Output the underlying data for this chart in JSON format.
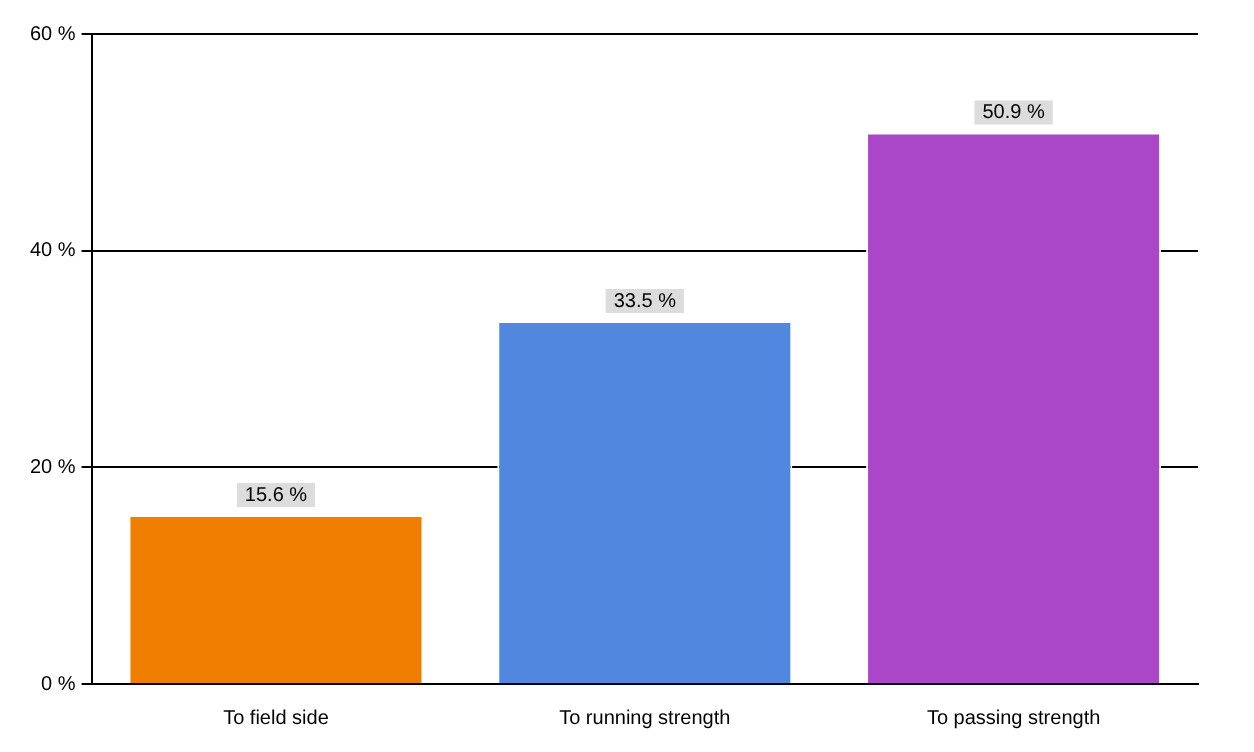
{
  "chart_data": {
    "type": "bar",
    "categories": [
      "To field side",
      "To running strength",
      "To passing strength"
    ],
    "values": [
      15.6,
      33.5,
      50.9
    ],
    "colors": [
      "#ef7e00",
      "#5287e0",
      "#aa46c8"
    ],
    "value_labels": [
      "15.6 %",
      "33.5 %",
      "50.9 %"
    ],
    "ylim": [
      0,
      60
    ],
    "yticks": [
      {
        "value": 0,
        "label": "0 %"
      },
      {
        "value": 20,
        "label": "20 %"
      },
      {
        "value": 40,
        "label": "40 %"
      },
      {
        "value": 60,
        "label": "60 %"
      }
    ],
    "grid": "y",
    "legend": false
  }
}
